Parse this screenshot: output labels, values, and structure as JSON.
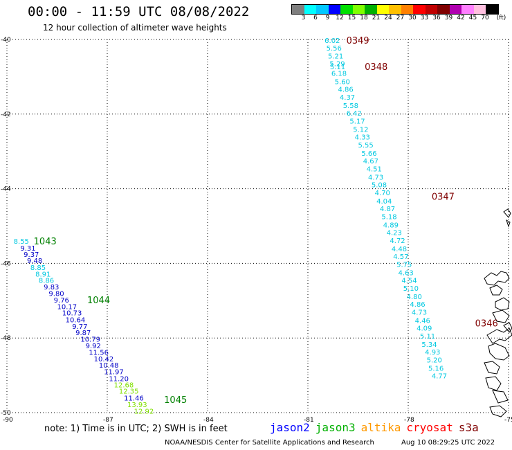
{
  "header": {
    "title": "00:00 - 11:59 UTC 08/08/2022",
    "subtitle": "12 hour collection of altimeter wave heights"
  },
  "legend": {
    "unit": "(ft)",
    "colors": [
      "#7f7f7f",
      "#00ffff",
      "#00c8ff",
      "#0000ff",
      "#00e000",
      "#80ff00",
      "#00b000",
      "#ffff00",
      "#ffc000",
      "#ff8000",
      "#ff0000",
      "#c00000",
      "#800000",
      "#b000b0",
      "#ff80ff",
      "#ffc0e0",
      "#000000"
    ],
    "labels": [
      "3",
      "6",
      "9",
      "12",
      "15",
      "18",
      "21",
      "24",
      "27",
      "30",
      "33",
      "36",
      "39",
      "42",
      "45",
      "70"
    ]
  },
  "map": {
    "lon_range": [
      -90,
      -75
    ],
    "lat_range": [
      -50,
      -40
    ],
    "lon_ticks": [
      "-90",
      "-87",
      "-84",
      "-81",
      "-78",
      "-75"
    ],
    "lat_ticks": [
      "-40",
      "-42",
      "-44",
      "-46",
      "-48",
      "-50"
    ],
    "colors": {
      "blue": "#0000c8",
      "cyan": "#00c8e0",
      "green": "#008000",
      "lightgreen": "#80e000",
      "darkred": "#800000",
      "grid": "#000000"
    },
    "passes": [
      {
        "label": "0349",
        "lon": -79.85,
        "lat": -40.02,
        "color": "darkred"
      },
      {
        "label": "0348",
        "lon": -79.3,
        "lat": -40.72,
        "color": "darkred"
      },
      {
        "label": "0347",
        "lon": -77.3,
        "lat": -44.2,
        "color": "darkred"
      },
      {
        "label": "0346",
        "lon": -76.0,
        "lat": -47.6,
        "color": "darkred"
      },
      {
        "label": "1043",
        "lon": -89.2,
        "lat": -45.4,
        "color": "green"
      },
      {
        "label": "1044",
        "lon": -87.6,
        "lat": -46.98,
        "color": "green"
      },
      {
        "label": "1045",
        "lon": -85.3,
        "lat": -49.65,
        "color": "green"
      }
    ],
    "points": [
      {
        "v": "6.02",
        "lon": -80.5,
        "lat": -40.02,
        "c": "cyan"
      },
      {
        "v": "5.56",
        "lon": -80.45,
        "lat": -40.22,
        "c": "cyan"
      },
      {
        "v": "5.21",
        "lon": -80.4,
        "lat": -40.44,
        "c": "cyan"
      },
      {
        "v": "5.29",
        "lon": -80.35,
        "lat": -40.64,
        "c": "cyan"
      },
      {
        "v": "5.11",
        "lon": -80.34,
        "lat": -40.72,
        "c": "cyan"
      },
      {
        "v": "6.18",
        "lon": -80.3,
        "lat": -40.9,
        "c": "cyan"
      },
      {
        "v": "5.60",
        "lon": -80.2,
        "lat": -41.12,
        "c": "cyan"
      },
      {
        "v": "4.86",
        "lon": -80.1,
        "lat": -41.33,
        "c": "cyan"
      },
      {
        "v": "4.37",
        "lon": -80.05,
        "lat": -41.54,
        "c": "cyan"
      },
      {
        "v": "5.58",
        "lon": -79.95,
        "lat": -41.76,
        "c": "cyan"
      },
      {
        "v": "6.42",
        "lon": -79.85,
        "lat": -41.97,
        "c": "cyan"
      },
      {
        "v": "5.17",
        "lon": -79.75,
        "lat": -42.18,
        "c": "cyan"
      },
      {
        "v": "5.12",
        "lon": -79.65,
        "lat": -42.4,
        "c": "cyan"
      },
      {
        "v": "4.33",
        "lon": -79.6,
        "lat": -42.61,
        "c": "cyan"
      },
      {
        "v": "5.55",
        "lon": -79.5,
        "lat": -42.82,
        "c": "cyan"
      },
      {
        "v": "5.66",
        "lon": -79.4,
        "lat": -43.04,
        "c": "cyan"
      },
      {
        "v": "4.67",
        "lon": -79.35,
        "lat": -43.25,
        "c": "cyan"
      },
      {
        "v": "4.51",
        "lon": -79.25,
        "lat": -43.46,
        "c": "cyan"
      },
      {
        "v": "4.73",
        "lon": -79.2,
        "lat": -43.68,
        "c": "cyan"
      },
      {
        "v": "5.08",
        "lon": -79.1,
        "lat": -43.89,
        "c": "cyan"
      },
      {
        "v": "4.70",
        "lon": -79.0,
        "lat": -44.1,
        "c": "cyan"
      },
      {
        "v": "4.04",
        "lon": -78.95,
        "lat": -44.32,
        "c": "cyan"
      },
      {
        "v": "4.87",
        "lon": -78.85,
        "lat": -44.53,
        "c": "cyan"
      },
      {
        "v": "5.18",
        "lon": -78.8,
        "lat": -44.74,
        "c": "cyan"
      },
      {
        "v": "4.89",
        "lon": -78.75,
        "lat": -44.96,
        "c": "cyan"
      },
      {
        "v": "4.23",
        "lon": -78.65,
        "lat": -45.17,
        "c": "cyan"
      },
      {
        "v": "4.72",
        "lon": -78.55,
        "lat": -45.38,
        "c": "cyan"
      },
      {
        "v": "4.48",
        "lon": -78.5,
        "lat": -45.6,
        "c": "cyan"
      },
      {
        "v": "4.57",
        "lon": -78.45,
        "lat": -45.81,
        "c": "cyan"
      },
      {
        "v": "5.75",
        "lon": -78.35,
        "lat": -46.02,
        "c": "cyan"
      },
      {
        "v": "4.63",
        "lon": -78.3,
        "lat": -46.24,
        "c": "cyan"
      },
      {
        "v": "4.54",
        "lon": -78.2,
        "lat": -46.45,
        "c": "cyan"
      },
      {
        "v": "5.10",
        "lon": -78.15,
        "lat": -46.66,
        "c": "cyan"
      },
      {
        "v": "4.80",
        "lon": -78.05,
        "lat": -46.88,
        "c": "cyan"
      },
      {
        "v": "4.86",
        "lon": -77.95,
        "lat": -47.09,
        "c": "cyan"
      },
      {
        "v": "4.73",
        "lon": -77.9,
        "lat": -47.3,
        "c": "cyan"
      },
      {
        "v": "4.46",
        "lon": -77.8,
        "lat": -47.52,
        "c": "cyan"
      },
      {
        "v": "4.09",
        "lon": -77.75,
        "lat": -47.73,
        "c": "cyan"
      },
      {
        "v": "5.11",
        "lon": -77.65,
        "lat": -47.94,
        "c": "cyan"
      },
      {
        "v": "5.34",
        "lon": -77.6,
        "lat": -48.16,
        "c": "cyan"
      },
      {
        "v": "4.93",
        "lon": -77.5,
        "lat": -48.37,
        "c": "cyan"
      },
      {
        "v": "5.20",
        "lon": -77.45,
        "lat": -48.58,
        "c": "cyan"
      },
      {
        "v": "5.16",
        "lon": -77.4,
        "lat": -48.8,
        "c": "cyan"
      },
      {
        "v": "4.77",
        "lon": -77.3,
        "lat": -49.01,
        "c": "cyan"
      },
      {
        "v": "8.55",
        "lon": -89.8,
        "lat": -45.4,
        "c": "cyan"
      },
      {
        "v": "9.31",
        "lon": -89.6,
        "lat": -45.58,
        "c": "blue"
      },
      {
        "v": "9.37",
        "lon": -89.5,
        "lat": -45.75,
        "c": "blue"
      },
      {
        "v": "9.48",
        "lon": -89.4,
        "lat": -45.92,
        "c": "blue"
      },
      {
        "v": "8.85",
        "lon": -89.3,
        "lat": -46.1,
        "c": "cyan"
      },
      {
        "v": "8.91",
        "lon": -89.15,
        "lat": -46.28,
        "c": "cyan"
      },
      {
        "v": "8.86",
        "lon": -89.05,
        "lat": -46.45,
        "c": "cyan"
      },
      {
        "v": "9.83",
        "lon": -88.9,
        "lat": -46.62,
        "c": "blue"
      },
      {
        "v": "9.80",
        "lon": -88.75,
        "lat": -46.8,
        "c": "blue"
      },
      {
        "v": "9.76",
        "lon": -88.6,
        "lat": -46.98,
        "c": "blue"
      },
      {
        "v": "10.17",
        "lon": -88.5,
        "lat": -47.15,
        "c": "blue"
      },
      {
        "v": "10.73",
        "lon": -88.35,
        "lat": -47.32,
        "c": "blue"
      },
      {
        "v": "10.64",
        "lon": -88.25,
        "lat": -47.5,
        "c": "blue"
      },
      {
        "v": "9.77",
        "lon": -88.05,
        "lat": -47.68,
        "c": "blue"
      },
      {
        "v": "9.87",
        "lon": -87.95,
        "lat": -47.85,
        "c": "blue"
      },
      {
        "v": "10.79",
        "lon": -87.8,
        "lat": -48.02,
        "c": "blue"
      },
      {
        "v": "9.92",
        "lon": -87.65,
        "lat": -48.2,
        "c": "blue"
      },
      {
        "v": "11.56",
        "lon": -87.55,
        "lat": -48.38,
        "c": "blue"
      },
      {
        "v": "10.42",
        "lon": -87.4,
        "lat": -48.55,
        "c": "blue"
      },
      {
        "v": "10.48",
        "lon": -87.25,
        "lat": -48.72,
        "c": "blue"
      },
      {
        "v": "11.97",
        "lon": -87.1,
        "lat": -48.9,
        "c": "blue"
      },
      {
        "v": "11.20",
        "lon": -86.95,
        "lat": -49.08,
        "c": "blue"
      },
      {
        "v": "12.68",
        "lon": -86.8,
        "lat": -49.25,
        "c": "lightgreen"
      },
      {
        "v": "12.35",
        "lon": -86.65,
        "lat": -49.42,
        "c": "lightgreen"
      },
      {
        "v": "11.46",
        "lon": -86.5,
        "lat": -49.6,
        "c": "blue"
      },
      {
        "v": "13.93",
        "lon": -86.4,
        "lat": -49.78,
        "c": "lightgreen"
      },
      {
        "v": "12.92",
        "lon": -86.2,
        "lat": -49.95,
        "c": "lightgreen"
      }
    ]
  },
  "note": {
    "text": "note: 1) Time is in UTC; 2) SWH is in feet"
  },
  "satellites": [
    {
      "name": "jason2",
      "color": "#0000ff"
    },
    {
      "name": "jason3",
      "color": "#00b000"
    },
    {
      "name": "altika",
      "color": "#ff9900"
    },
    {
      "name": "cryosat",
      "color": "#ff0000"
    },
    {
      "name": "s3a",
      "color": "#800000"
    }
  ],
  "footer": {
    "credit": "NOAA/NESDIS Center for Satellite Applications and Research",
    "timestamp": "Aug 10 08:29:25 UTC 2022"
  }
}
